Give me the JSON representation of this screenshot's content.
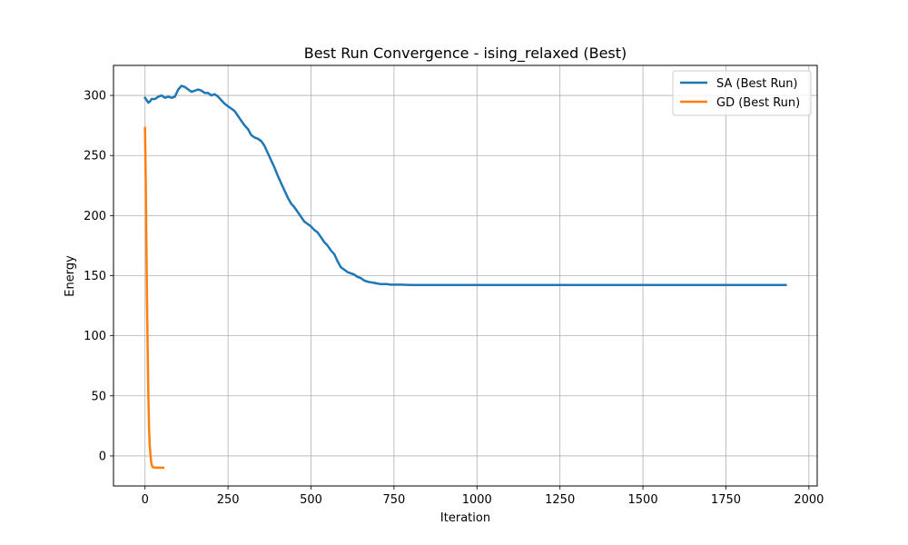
{
  "chart_data": {
    "type": "line",
    "title": "Best Run Convergence - ising_relaxed (Best)",
    "xlabel": "Iteration",
    "ylabel": "Energy",
    "xlim": [
      -95,
      2025
    ],
    "ylim": [
      -25,
      325
    ],
    "x_ticks": [
      0,
      250,
      500,
      750,
      1000,
      1250,
      1500,
      1750,
      2000
    ],
    "y_ticks": [
      0,
      50,
      100,
      150,
      200,
      250,
      300
    ],
    "grid": true,
    "legend_position": "top-right",
    "series": [
      {
        "name": "SA (Best Run)",
        "color": "#1f77b4",
        "x": [
          0,
          5,
          10,
          15,
          20,
          30,
          40,
          50,
          60,
          70,
          80,
          90,
          100,
          110,
          120,
          130,
          140,
          150,
          160,
          170,
          180,
          190,
          200,
          210,
          220,
          230,
          240,
          250,
          260,
          270,
          280,
          290,
          300,
          310,
          320,
          330,
          340,
          350,
          360,
          370,
          380,
          390,
          400,
          410,
          420,
          430,
          440,
          450,
          460,
          470,
          480,
          490,
          500,
          510,
          520,
          530,
          540,
          550,
          560,
          570,
          580,
          590,
          600,
          610,
          620,
          630,
          640,
          650,
          660,
          670,
          680,
          690,
          700,
          710,
          720,
          730,
          740,
          750,
          770,
          800,
          830,
          850,
          900,
          1000,
          1200,
          1500,
          1800,
          1930
        ],
        "y": [
          298,
          296,
          294,
          295,
          297,
          297,
          299,
          300,
          298,
          299,
          298,
          299,
          305,
          308,
          307,
          305,
          303,
          304,
          305,
          304,
          302,
          302,
          300,
          301,
          299,
          296,
          293,
          291,
          289,
          287,
          283,
          279,
          275,
          272,
          267,
          265,
          264,
          262,
          258,
          252,
          246,
          240,
          233,
          227,
          221,
          215,
          210,
          207,
          203,
          199,
          195,
          193,
          191,
          188,
          186,
          182,
          178,
          175,
          171,
          168,
          162,
          157,
          155,
          153,
          152,
          151,
          149,
          148,
          146,
          145,
          144.5,
          144,
          143.5,
          143,
          143,
          143,
          142.5,
          142.5,
          142.5,
          142.3,
          142.2,
          142.2,
          142.2,
          142.2,
          142.2,
          142.2,
          142.2,
          142.2
        ]
      },
      {
        "name": "GD (Best Run)",
        "color": "#ff7f0e",
        "x": [
          0,
          2,
          4,
          6,
          8,
          10,
          12,
          14,
          16,
          18,
          20,
          22,
          25,
          30,
          40,
          55
        ],
        "y": [
          273,
          230,
          180,
          130,
          85,
          50,
          25,
          10,
          2,
          -4,
          -7,
          -9,
          -9.5,
          -9.8,
          -9.8,
          -9.8
        ]
      }
    ]
  }
}
